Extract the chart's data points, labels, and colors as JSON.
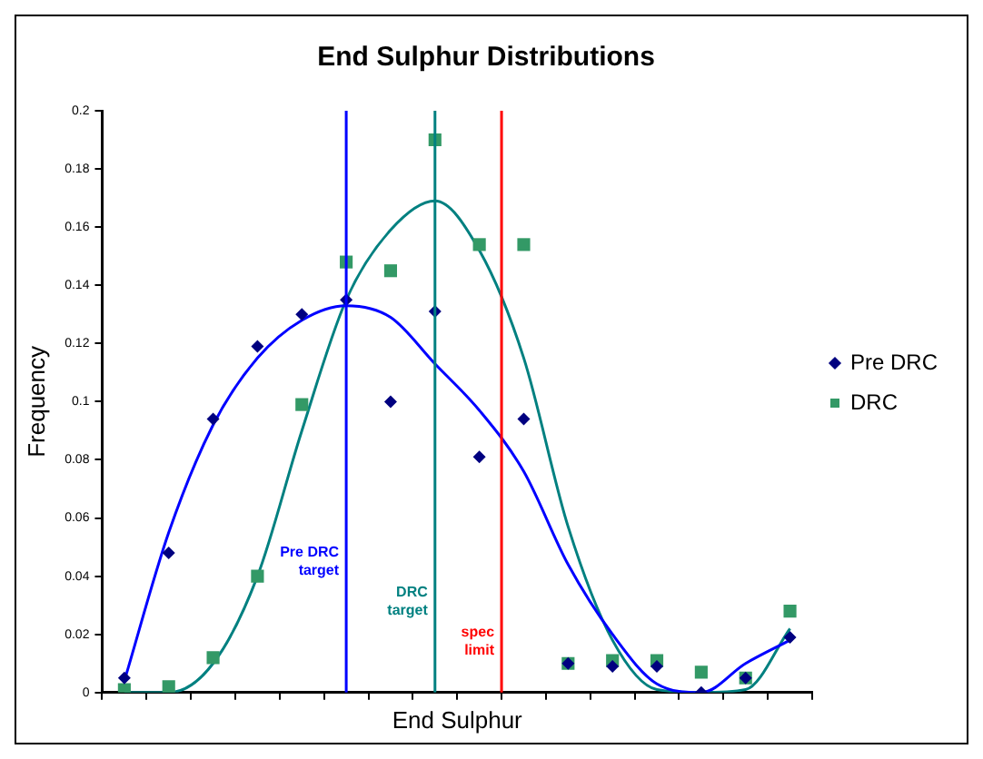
{
  "chart_data": {
    "type": "scatter",
    "title": "End Sulphur Distributions",
    "xlabel": "End Sulphur",
    "ylabel": "Frequency",
    "categories": [
      null,
      null,
      null,
      null,
      null,
      null,
      null,
      null,
      null,
      null,
      null,
      null,
      null,
      null,
      null,
      null
    ],
    "ylim": [
      0,
      0.2
    ],
    "yticks": [
      0,
      0.02,
      0.04,
      0.06,
      0.08,
      0.1,
      0.12,
      0.14,
      0.16,
      0.18,
      0.2
    ],
    "tick_labels": "y",
    "grid": false,
    "legend": "right",
    "series": [
      {
        "name": "Pre DRC",
        "marker": "diamond",
        "color": "#000080",
        "values": [
          0.005,
          0.048,
          0.094,
          0.119,
          0.13,
          0.135,
          0.1,
          0.131,
          0.081,
          0.094,
          0.01,
          0.009,
          0.009,
          0,
          0.005,
          0.019
        ]
      },
      {
        "name": "DRC",
        "marker": "square",
        "color": "#339966",
        "values": [
          0.001,
          0.002,
          0.012,
          0.04,
          0.099,
          0.148,
          0.145,
          0.19,
          0.154,
          0.154,
          0.01,
          0.011,
          0.011,
          0.007,
          0.005,
          0.028
        ]
      },
      {
        "type": "line",
        "marker": "none",
        "color": "#0000ff",
        "values": [
          0.004,
          0.055,
          0.092,
          0.115,
          0.128,
          0.133,
          0.129,
          0.113,
          0.097,
          0.076,
          0.044,
          0.02,
          0.003,
          0,
          0.01,
          0.018
        ]
      },
      {
        "type": "line",
        "marker": "none",
        "color": "#008080",
        "values": [
          0,
          0,
          0.01,
          0.04,
          0.09,
          0.135,
          0.159,
          0.169,
          0.152,
          0.115,
          0.057,
          0.018,
          0.001,
          0,
          0.001,
          0.022
        ]
      }
    ],
    "annotations": [
      "Pre DRC target",
      "DRC target",
      "spec limit"
    ]
  }
}
